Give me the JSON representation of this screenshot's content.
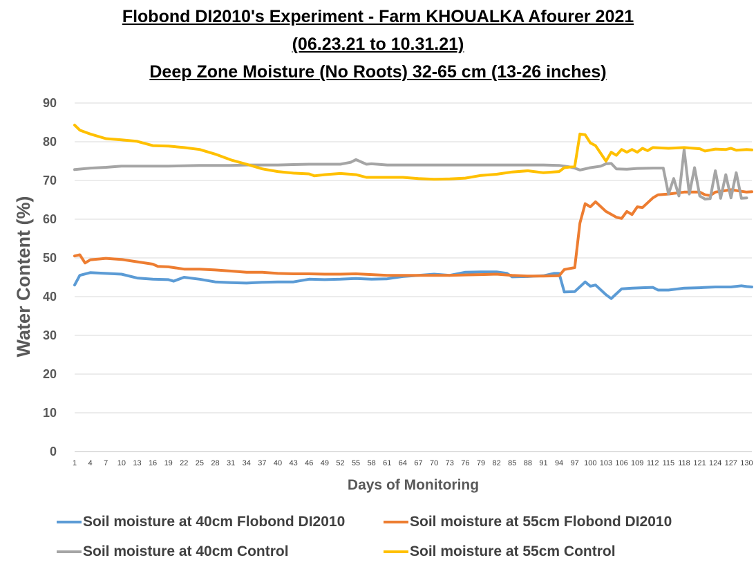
{
  "chart_data": {
    "type": "line",
    "title": [
      "Flobond DI2010's Experiment - Farm KHOUALKA Afourer 2021",
      "(06.23.21 to 10.31.21)",
      "Deep Zone Moisture (No Roots) 32-65 cm (13-26 inches)"
    ],
    "xlabel": "Days of Monitoring",
    "ylabel": "Water Content (%)",
    "ylim": [
      0,
      90
    ],
    "yticks": [
      0,
      10,
      20,
      30,
      40,
      50,
      60,
      70,
      80,
      90
    ],
    "xlim": [
      1,
      131
    ],
    "xtick_labels": [
      "1",
      "4",
      "7",
      "10",
      "13",
      "16",
      "19",
      "22",
      "25",
      "28",
      "31",
      "34",
      "37",
      "40",
      "43",
      "46",
      "49",
      "52",
      "55",
      "58",
      "61",
      "64",
      "67",
      "70",
      "73",
      "76",
      "79",
      "82",
      "85",
      "88",
      "91",
      "94",
      "97",
      "100",
      "103",
      "106",
      "109",
      "112",
      "115",
      "118",
      "121",
      "124",
      "127",
      "130"
    ],
    "grid": true,
    "legend_position": "bottom",
    "series": [
      {
        "name": "Soil moisture at 40cm  Flobond DI2010",
        "color": "#5B9BD5",
        "points": [
          [
            1,
            43
          ],
          [
            2,
            45.5
          ],
          [
            4,
            46.2
          ],
          [
            7,
            46
          ],
          [
            10,
            45.8
          ],
          [
            13,
            44.8
          ],
          [
            16,
            44.5
          ],
          [
            19,
            44.4
          ],
          [
            20,
            44
          ],
          [
            22,
            45
          ],
          [
            25,
            44.5
          ],
          [
            28,
            43.8
          ],
          [
            31,
            43.6
          ],
          [
            34,
            43.5
          ],
          [
            37,
            43.7
          ],
          [
            40,
            43.8
          ],
          [
            43,
            43.8
          ],
          [
            46,
            44.5
          ],
          [
            49,
            44.4
          ],
          [
            52,
            44.5
          ],
          [
            55,
            44.7
          ],
          [
            58,
            44.5
          ],
          [
            61,
            44.6
          ],
          [
            64,
            45.2
          ],
          [
            67,
            45.5
          ],
          [
            70,
            45.8
          ],
          [
            73,
            45.5
          ],
          [
            76,
            46.3
          ],
          [
            79,
            46.4
          ],
          [
            82,
            46.4
          ],
          [
            84,
            46
          ],
          [
            85,
            45.1
          ],
          [
            88,
            45.2
          ],
          [
            91,
            45.4
          ],
          [
            93,
            46
          ],
          [
            94,
            46
          ],
          [
            95,
            41.2
          ],
          [
            97,
            41.3
          ],
          [
            99,
            43.8
          ],
          [
            100,
            42.7
          ],
          [
            101,
            43
          ],
          [
            103,
            40.5
          ],
          [
            104,
            39.5
          ],
          [
            106,
            42
          ],
          [
            108,
            42.2
          ],
          [
            110,
            42.3
          ],
          [
            112,
            42.4
          ],
          [
            113,
            41.7
          ],
          [
            115,
            41.7
          ],
          [
            118,
            42.2
          ],
          [
            121,
            42.3
          ],
          [
            124,
            42.5
          ],
          [
            127,
            42.5
          ],
          [
            129,
            42.8
          ],
          [
            130,
            42.6
          ],
          [
            131,
            42.5
          ]
        ]
      },
      {
        "name": "Soil moisture at 55cm  Flobond DI2010",
        "color": "#ED7D31",
        "points": [
          [
            1,
            50.5
          ],
          [
            2,
            50.8
          ],
          [
            3,
            48.7
          ],
          [
            4,
            49.5
          ],
          [
            7,
            49.9
          ],
          [
            10,
            49.6
          ],
          [
            13,
            49
          ],
          [
            16,
            48.4
          ],
          [
            17,
            47.8
          ],
          [
            19,
            47.7
          ],
          [
            22,
            47.1
          ],
          [
            25,
            47.1
          ],
          [
            28,
            46.9
          ],
          [
            31,
            46.6
          ],
          [
            34,
            46.3
          ],
          [
            37,
            46.3
          ],
          [
            40,
            46
          ],
          [
            43,
            45.9
          ],
          [
            46,
            45.9
          ],
          [
            49,
            45.8
          ],
          [
            52,
            45.8
          ],
          [
            55,
            45.9
          ],
          [
            58,
            45.7
          ],
          [
            61,
            45.5
          ],
          [
            64,
            45.5
          ],
          [
            67,
            45.5
          ],
          [
            70,
            45.5
          ],
          [
            73,
            45.5
          ],
          [
            76,
            45.6
          ],
          [
            79,
            45.7
          ],
          [
            82,
            45.8
          ],
          [
            85,
            45.5
          ],
          [
            88,
            45.3
          ],
          [
            91,
            45.3
          ],
          [
            94,
            45.4
          ],
          [
            95,
            47
          ],
          [
            97,
            47.5
          ],
          [
            98,
            59
          ],
          [
            99,
            64
          ],
          [
            100,
            63.2
          ],
          [
            101,
            64.5
          ],
          [
            103,
            62
          ],
          [
            105,
            60.5
          ],
          [
            106,
            60.2
          ],
          [
            107,
            62
          ],
          [
            108,
            61.2
          ],
          [
            109,
            63.2
          ],
          [
            110,
            63
          ],
          [
            112,
            65.5
          ],
          [
            113,
            66.3
          ],
          [
            115,
            66.5
          ],
          [
            118,
            67
          ],
          [
            121,
            67
          ],
          [
            122,
            66.3
          ],
          [
            123,
            66.1
          ],
          [
            124,
            67
          ],
          [
            127,
            67.6
          ],
          [
            130,
            67
          ],
          [
            131,
            67.1
          ]
        ]
      },
      {
        "name": "Soil moisture at 40cm  Control",
        "color": "#A5A5A5",
        "points": [
          [
            1,
            72.8
          ],
          [
            4,
            73.2
          ],
          [
            7,
            73.4
          ],
          [
            10,
            73.7
          ],
          [
            13,
            73.7
          ],
          [
            16,
            73.7
          ],
          [
            19,
            73.7
          ],
          [
            22,
            73.8
          ],
          [
            25,
            73.9
          ],
          [
            28,
            73.9
          ],
          [
            31,
            73.9
          ],
          [
            34,
            74
          ],
          [
            37,
            74
          ],
          [
            40,
            74
          ],
          [
            43,
            74.1
          ],
          [
            46,
            74.2
          ],
          [
            49,
            74.2
          ],
          [
            52,
            74.2
          ],
          [
            54,
            74.7
          ],
          [
            55,
            75.4
          ],
          [
            57,
            74.2
          ],
          [
            58,
            74.3
          ],
          [
            61,
            74
          ],
          [
            64,
            74
          ],
          [
            67,
            74
          ],
          [
            70,
            74
          ],
          [
            73,
            74
          ],
          [
            76,
            74
          ],
          [
            79,
            74
          ],
          [
            82,
            74
          ],
          [
            85,
            74
          ],
          [
            88,
            74
          ],
          [
            91,
            74
          ],
          [
            94,
            73.9
          ],
          [
            96,
            73.5
          ],
          [
            97,
            73.2
          ],
          [
            98,
            72.7
          ],
          [
            100,
            73.3
          ],
          [
            102,
            73.7
          ],
          [
            103,
            74.3
          ],
          [
            104,
            74.4
          ],
          [
            105,
            73
          ],
          [
            107,
            72.9
          ],
          [
            109,
            73.1
          ],
          [
            112,
            73.2
          ],
          [
            114,
            73.2
          ],
          [
            115,
            66.5
          ],
          [
            116,
            70.5
          ],
          [
            117,
            66
          ],
          [
            118,
            78
          ],
          [
            119,
            66.5
          ],
          [
            120,
            73.3
          ],
          [
            121,
            66
          ],
          [
            122,
            65.2
          ],
          [
            123,
            65.3
          ],
          [
            124,
            72.5
          ],
          [
            125,
            65.4
          ],
          [
            126,
            71.5
          ],
          [
            127,
            65.5
          ],
          [
            128,
            72
          ],
          [
            129,
            65.4
          ],
          [
            130,
            65.5
          ]
        ]
      },
      {
        "name": "Soil moisture at 55cm  Control",
        "color": "#FFC000",
        "points": [
          [
            1,
            84.3
          ],
          [
            2,
            83
          ],
          [
            4,
            82
          ],
          [
            7,
            80.8
          ],
          [
            10,
            80.5
          ],
          [
            13,
            80.1
          ],
          [
            16,
            79
          ],
          [
            19,
            78.9
          ],
          [
            22,
            78.5
          ],
          [
            25,
            78
          ],
          [
            28,
            76.8
          ],
          [
            31,
            75.3
          ],
          [
            34,
            74.2
          ],
          [
            37,
            73
          ],
          [
            40,
            72.3
          ],
          [
            43,
            71.9
          ],
          [
            46,
            71.7
          ],
          [
            47,
            71.2
          ],
          [
            49,
            71.5
          ],
          [
            52,
            71.8
          ],
          [
            55,
            71.5
          ],
          [
            57,
            70.8
          ],
          [
            61,
            70.8
          ],
          [
            64,
            70.8
          ],
          [
            67,
            70.5
          ],
          [
            70,
            70.3
          ],
          [
            73,
            70.4
          ],
          [
            76,
            70.6
          ],
          [
            79,
            71.3
          ],
          [
            82,
            71.6
          ],
          [
            85,
            72.2
          ],
          [
            88,
            72.5
          ],
          [
            91,
            72
          ],
          [
            94,
            72.3
          ],
          [
            95,
            73.3
          ],
          [
            97,
            73.6
          ],
          [
            98,
            82
          ],
          [
            99,
            81.8
          ],
          [
            100,
            79.7
          ],
          [
            101,
            79
          ],
          [
            103,
            75
          ],
          [
            104,
            77.3
          ],
          [
            105,
            76.5
          ],
          [
            106,
            78
          ],
          [
            107,
            77.3
          ],
          [
            108,
            78
          ],
          [
            109,
            77.3
          ],
          [
            110,
            78.3
          ],
          [
            111,
            77.7
          ],
          [
            112,
            78.5
          ],
          [
            115,
            78.3
          ],
          [
            118,
            78.5
          ],
          [
            121,
            78.2
          ],
          [
            122,
            77.6
          ],
          [
            124,
            78.1
          ],
          [
            126,
            78
          ],
          [
            127,
            78.3
          ],
          [
            128,
            77.8
          ],
          [
            130,
            78
          ],
          [
            131,
            77.9
          ]
        ]
      }
    ]
  }
}
